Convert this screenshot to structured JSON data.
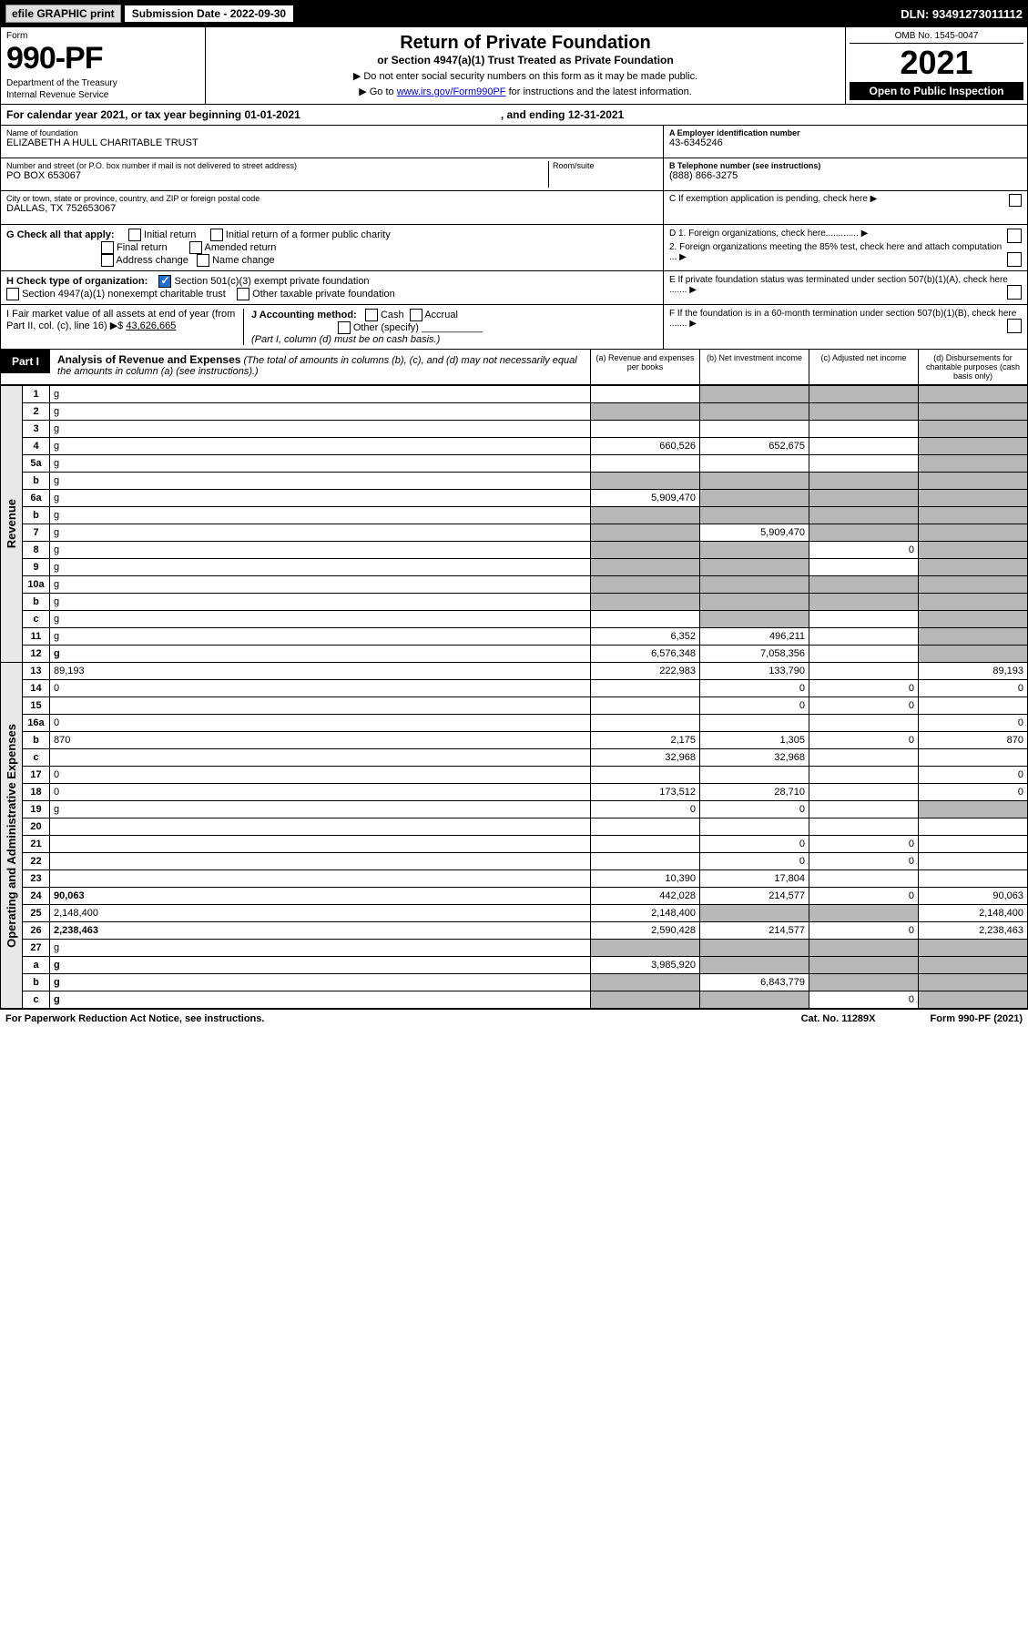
{
  "top": {
    "efile_label": "efile GRAPHIC print",
    "sub_label": "Submission Date - 2022-09-30",
    "dln": "DLN: 93491273011112"
  },
  "header": {
    "form_label": "Form",
    "form_num": "990-PF",
    "dept1": "Department of the Treasury",
    "dept2": "Internal Revenue Service",
    "title": "Return of Private Foundation",
    "subtitle": "or Section 4947(a)(1) Trust Treated as Private Foundation",
    "note1": "▶ Do not enter social security numbers on this form as it may be made public.",
    "note2": "▶ Go to www.irs.gov/Form990PF for instructions and the latest information.",
    "link": "www.irs.gov/Form990PF",
    "omb": "OMB No. 1545-0047",
    "year": "2021",
    "open": "Open to Public Inspection"
  },
  "cal": {
    "text1": "For calendar year 2021, or tax year beginning 01-01-2021",
    "text2": ", and ending 12-31-2021"
  },
  "info": {
    "name_lbl": "Name of foundation",
    "name": "ELIZABETH A HULL CHARITABLE TRUST",
    "addr_lbl": "Number and street (or P.O. box number if mail is not delivered to street address)",
    "addr": "PO BOX 653067",
    "room_lbl": "Room/suite",
    "city_lbl": "City or town, state or province, country, and ZIP or foreign postal code",
    "city": "DALLAS, TX  752653067",
    "ein_lbl": "A Employer identification number",
    "ein": "43-6345246",
    "phone_lbl": "B Telephone number (see instructions)",
    "phone": "(888) 866-3275",
    "c_lbl": "C If exemption application is pending, check here ▶"
  },
  "g": {
    "label": "G Check all that apply:",
    "opts": [
      "Initial return",
      "Initial return of a former public charity",
      "Final return",
      "Amended return",
      "Address change",
      "Name change"
    ]
  },
  "h": {
    "label": "H Check type of organization:",
    "opt1": "Section 501(c)(3) exempt private foundation",
    "opt2": "Section 4947(a)(1) nonexempt charitable trust",
    "opt3": "Other taxable private foundation"
  },
  "d": {
    "d1": "D 1. Foreign organizations, check here............. ▶",
    "d2": "2. Foreign organizations meeting the 85% test, check here and attach computation ...  ▶",
    "e": "E  If private foundation status was terminated under section 507(b)(1)(A), check here ....... ▶",
    "f": "F  If the foundation is in a 60-month termination under section 507(b)(1)(B), check here ....... ▶"
  },
  "i": {
    "label": "I Fair market value of all assets at end of year (from Part II, col. (c), line 16) ▶$",
    "val": "43,626,665"
  },
  "j": {
    "label": "J Accounting method:",
    "cash": "Cash",
    "accrual": "Accrual",
    "other": "Other (specify)",
    "note": "(Part I, column (d) must be on cash basis.)"
  },
  "part1": {
    "tab": "Part I",
    "title": "Analysis of Revenue and Expenses",
    "note": " (The total of amounts in columns (b), (c), and (d) may not necessarily equal the amounts in column (a) (see instructions).)",
    "cols": {
      "a": "(a)  Revenue and expenses per books",
      "b": "(b)  Net investment income",
      "c": "(c)  Adjusted net income",
      "d": "(d)  Disbursements for charitable purposes (cash basis only)"
    }
  },
  "side": {
    "rev": "Revenue",
    "exp": "Operating and Administrative Expenses"
  },
  "rows": [
    {
      "n": "1",
      "d": "g",
      "a": "",
      "b": "g",
      "c": "g"
    },
    {
      "n": "2",
      "d": "g",
      "a": "g",
      "b": "g",
      "c": "g"
    },
    {
      "n": "3",
      "d": "g",
      "a": "",
      "b": "",
      "c": ""
    },
    {
      "n": "4",
      "d": "g",
      "a": "660,526",
      "b": "652,675",
      "c": ""
    },
    {
      "n": "5a",
      "d": "g",
      "a": "",
      "b": "",
      "c": ""
    },
    {
      "n": "b",
      "d": "g",
      "a": "g",
      "b": "g",
      "c": "g"
    },
    {
      "n": "6a",
      "d": "g",
      "a": "5,909,470",
      "b": "g",
      "c": "g"
    },
    {
      "n": "b",
      "d": "g",
      "a": "g",
      "b": "g",
      "c": "g"
    },
    {
      "n": "7",
      "d": "g",
      "a": "g",
      "b": "5,909,470",
      "c": "g"
    },
    {
      "n": "8",
      "d": "g",
      "a": "g",
      "b": "g",
      "c": "0"
    },
    {
      "n": "9",
      "d": "g",
      "a": "g",
      "b": "g",
      "c": ""
    },
    {
      "n": "10a",
      "d": "g",
      "a": "g",
      "b": "g",
      "c": "g"
    },
    {
      "n": "b",
      "d": "g",
      "a": "g",
      "b": "g",
      "c": "g"
    },
    {
      "n": "c",
      "d": "g",
      "a": "",
      "b": "g",
      "c": ""
    },
    {
      "n": "11",
      "d": "g",
      "a": "6,352",
      "b": "496,211",
      "c": ""
    },
    {
      "n": "12",
      "d": "g",
      "a": "6,576,348",
      "b": "7,058,356",
      "c": "",
      "bold": true
    },
    {
      "n": "13",
      "d": "89,193",
      "a": "222,983",
      "b": "133,790",
      "c": ""
    },
    {
      "n": "14",
      "d": "0",
      "a": "",
      "b": "0",
      "c": "0"
    },
    {
      "n": "15",
      "d": "",
      "a": "",
      "b": "0",
      "c": "0"
    },
    {
      "n": "16a",
      "d": "0",
      "a": "",
      "b": "",
      "c": ""
    },
    {
      "n": "b",
      "d": "870",
      "a": "2,175",
      "b": "1,305",
      "c": "0"
    },
    {
      "n": "c",
      "d": "",
      "a": "32,968",
      "b": "32,968",
      "c": ""
    },
    {
      "n": "17",
      "d": "0",
      "a": "",
      "b": "",
      "c": ""
    },
    {
      "n": "18",
      "d": "0",
      "a": "173,512",
      "b": "28,710",
      "c": ""
    },
    {
      "n": "19",
      "d": "g",
      "a": "0",
      "b": "0",
      "c": ""
    },
    {
      "n": "20",
      "d": "",
      "a": "",
      "b": "",
      "c": ""
    },
    {
      "n": "21",
      "d": "",
      "a": "",
      "b": "0",
      "c": "0"
    },
    {
      "n": "22",
      "d": "",
      "a": "",
      "b": "0",
      "c": "0"
    },
    {
      "n": "23",
      "d": "",
      "a": "10,390",
      "b": "17,804",
      "c": ""
    },
    {
      "n": "24",
      "d": "90,063",
      "a": "442,028",
      "b": "214,577",
      "c": "0",
      "bold": true
    },
    {
      "n": "25",
      "d": "2,148,400",
      "a": "2,148,400",
      "b": "g",
      "c": "g"
    },
    {
      "n": "26",
      "d": "2,238,463",
      "a": "2,590,428",
      "b": "214,577",
      "c": "0",
      "bold": true
    },
    {
      "n": "27",
      "d": "g",
      "a": "g",
      "b": "g",
      "c": "g"
    },
    {
      "n": "a",
      "d": "g",
      "a": "3,985,920",
      "b": "g",
      "c": "g",
      "bold": true
    },
    {
      "n": "b",
      "d": "g",
      "a": "g",
      "b": "6,843,779",
      "c": "g",
      "bold": true
    },
    {
      "n": "c",
      "d": "g",
      "a": "g",
      "b": "g",
      "c": "0",
      "bold": true
    }
  ],
  "footer": {
    "left": "For Paperwork Reduction Act Notice, see instructions.",
    "mid": "Cat. No. 11289X",
    "right": "Form 990-PF (2021)"
  }
}
